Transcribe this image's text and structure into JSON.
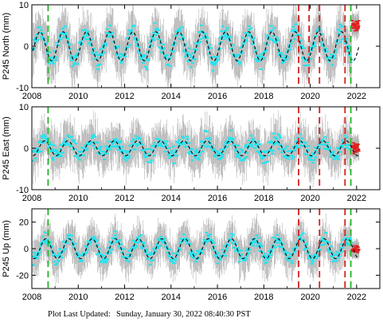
{
  "footer": {
    "label": "Plot Last Updated:",
    "timestamp": "Sunday, January 30, 2022 08:40:30 PST"
  },
  "colors": {
    "observations": "#22e5f0",
    "error_bars": "#b3b3b3",
    "recent_observations": "#e02020",
    "model_fit": "#000000",
    "green_marker": "#22b522",
    "red_marker": "#d42020"
  },
  "chart_data": [
    {
      "type": "scatter",
      "ylabel": "P245 North (mm)",
      "xlim": [
        2008,
        2023
      ],
      "ylim": [
        -10,
        10
      ],
      "x_ticks": [
        2008,
        2010,
        2012,
        2014,
        2016,
        2018,
        2020,
        2022
      ],
      "y_ticks": [
        -10,
        0,
        10
      ],
      "seasonal_model": {
        "amplitude": 3.5,
        "period_years": 1,
        "peak_phase": 0.35
      },
      "scatter_spread": 3,
      "error_bar_spread": 5.5,
      "vertical_markers": [
        {
          "x": 2008.7,
          "color": "green"
        },
        {
          "x": 2019.5,
          "color": "red"
        },
        {
          "x": 2019.95,
          "color": "red"
        },
        {
          "x": 2020.4,
          "color": "red"
        },
        {
          "x": 2021.5,
          "color": "red"
        },
        {
          "x": 2021.75,
          "color": "green"
        }
      ],
      "recent_points": {
        "x_start": 2021.8,
        "x_end": 2022.1,
        "y": 5
      },
      "grid": false
    },
    {
      "type": "scatter",
      "ylabel": "P245 East (mm)",
      "xlim": [
        2008,
        2023
      ],
      "ylim": [
        -10,
        10
      ],
      "x_ticks": [
        2008,
        2010,
        2012,
        2014,
        2016,
        2018,
        2020,
        2022
      ],
      "y_ticks": [
        -10,
        0,
        10
      ],
      "seasonal_model": {
        "amplitude": 1.8,
        "period_years": 1,
        "peak_phase": 0.55
      },
      "scatter_spread": 3,
      "error_bar_spread": 5,
      "vertical_markers": [
        {
          "x": 2008.7,
          "color": "green"
        },
        {
          "x": 2019.5,
          "color": "red"
        },
        {
          "x": 2020.4,
          "color": "red"
        },
        {
          "x": 2021.5,
          "color": "red"
        },
        {
          "x": 2021.75,
          "color": "green"
        }
      ],
      "recent_points": {
        "x_start": 2021.8,
        "x_end": 2022.1,
        "y": 0
      },
      "grid": false
    },
    {
      "type": "scatter",
      "ylabel": "P245 Up (mm)",
      "xlim": [
        2008,
        2023
      ],
      "ylim": [
        -30,
        30
      ],
      "x_ticks": [
        2008,
        2010,
        2012,
        2014,
        2016,
        2018,
        2020,
        2022
      ],
      "y_ticks": [
        -20,
        0,
        20
      ],
      "seasonal_model": {
        "amplitude": 7.5,
        "period_years": 1,
        "peak_phase": 0.6
      },
      "scatter_spread": 7,
      "error_bar_spread": 14,
      "vertical_markers": [
        {
          "x": 2008.7,
          "color": "green"
        },
        {
          "x": 2019.5,
          "color": "red"
        },
        {
          "x": 2020.4,
          "color": "red"
        },
        {
          "x": 2021.5,
          "color": "red"
        },
        {
          "x": 2021.75,
          "color": "green"
        }
      ],
      "recent_points": {
        "x_start": 2021.8,
        "x_end": 2022.1,
        "y": 0
      },
      "grid": false
    }
  ]
}
